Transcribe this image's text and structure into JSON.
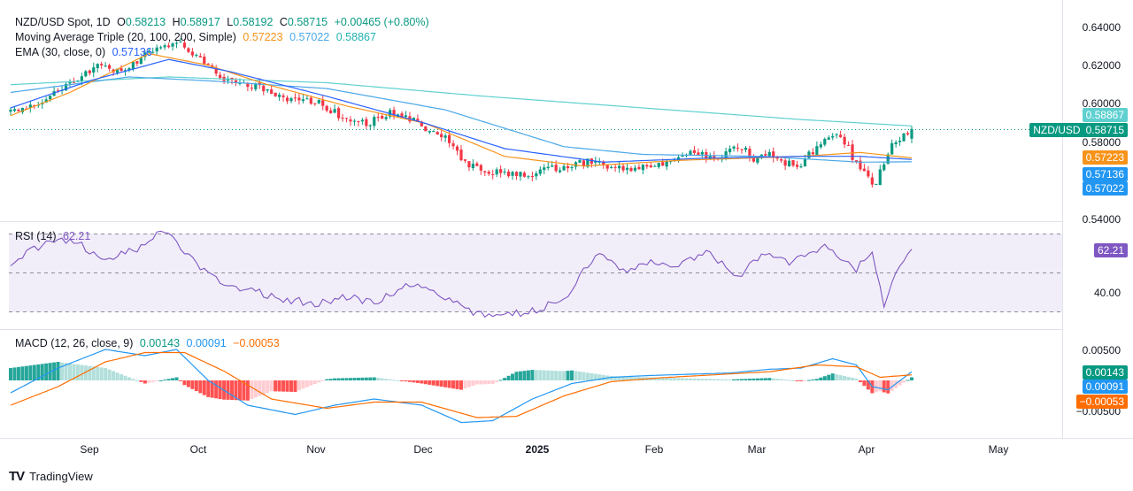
{
  "legend": {
    "main": {
      "title": "NZD/USD Spot, 1D",
      "o_label": "O",
      "o": "0.58213",
      "h_label": "H",
      "h": "0.58917",
      "l_label": "L",
      "l": "0.58192",
      "c_label": "C",
      "c": "0.58715",
      "change": "+0.00465 (+0.80%)"
    },
    "ma": {
      "title": "Moving Average Triple (20, 100, 200, Simple)",
      "v1": "0.57223",
      "v2": "0.57022",
      "v3": "0.58867"
    },
    "ema": {
      "title": "EMA (30, close, 0)",
      "v": "0.57136"
    },
    "rsi": {
      "title": "RSI (14)",
      "v": "62.21"
    },
    "macd": {
      "title": "MACD (12, 26, close, 9)",
      "v1": "0.00143",
      "v2": "0.00091",
      "v3": "−0.00053"
    }
  },
  "price_axis": [
    "0.64000",
    "0.62000",
    "0.60000",
    "0.58000",
    "0.54000"
  ],
  "rsi_axis": [
    "40.00"
  ],
  "macd_axis": [
    "0.00500",
    "−0.00500"
  ],
  "x_axis": [
    "Sep",
    "Oct",
    "Nov",
    "Dec",
    "2025",
    "Feb",
    "Mar",
    "Apr",
    "May"
  ],
  "badges": {
    "sma200": "0.58867",
    "symbol": "NZD/USD",
    "price": "0.58715",
    "sma20": "0.57223",
    "ema30": "0.57136",
    "sma100": "0.57022",
    "rsi": "62.21",
    "macd": "0.00143",
    "signal": "0.00091",
    "hist": "−0.00053"
  },
  "brand": "TradingView",
  "colors": {
    "up": "#089981",
    "down": "#f23645",
    "sma20": "#f7931a",
    "sma100": "#4aa8e8",
    "sma200": "#5fd0d0",
    "ema30": "#2962ff",
    "rsi": "#7e57c2",
    "macd": "#2196f3",
    "signal": "#ff6d00"
  },
  "chart_data": [
    {
      "type": "candlestick",
      "title": "NZD/USD Spot, 1D",
      "ylim": [
        0.54,
        0.646
      ],
      "x_ticks": [
        "Sep",
        "Oct",
        "Nov",
        "Dec",
        "2025",
        "Feb",
        "Mar",
        "Apr",
        "May"
      ],
      "close_anchors": [
        [
          0,
          0.596
        ],
        [
          7,
          0.601
        ],
        [
          14,
          0.61
        ],
        [
          22,
          0.619
        ],
        [
          28,
          0.617
        ],
        [
          36,
          0.628
        ],
        [
          42,
          0.633
        ],
        [
          48,
          0.623
        ],
        [
          54,
          0.613
        ],
        [
          62,
          0.609
        ],
        [
          70,
          0.603
        ],
        [
          78,
          0.601
        ],
        [
          84,
          0.593
        ],
        [
          90,
          0.59
        ],
        [
          96,
          0.595
        ],
        [
          102,
          0.591
        ],
        [
          110,
          0.582
        ],
        [
          116,
          0.568
        ],
        [
          122,
          0.565
        ],
        [
          130,
          0.563
        ],
        [
          138,
          0.567
        ],
        [
          146,
          0.57
        ],
        [
          152,
          0.568
        ],
        [
          158,
          0.566
        ],
        [
          166,
          0.57
        ],
        [
          172,
          0.574
        ],
        [
          180,
          0.572
        ],
        [
          184,
          0.579
        ],
        [
          188,
          0.572
        ],
        [
          192,
          0.575
        ],
        [
          196,
          0.57
        ],
        [
          200,
          0.569
        ],
        [
          204,
          0.578
        ],
        [
          207,
          0.581
        ],
        [
          210,
          0.584
        ],
        [
          213,
          0.573
        ],
        [
          217,
          0.561
        ],
        [
          219,
          0.559
        ],
        [
          221,
          0.57
        ],
        [
          223,
          0.578
        ],
        [
          226,
          0.585
        ],
        [
          228,
          0.587
        ]
      ],
      "series": [
        {
          "name": "SMA 200",
          "anchors": [
            [
              0,
              0.61
            ],
            [
              40,
              0.614
            ],
            [
              80,
              0.611
            ],
            [
              120,
              0.604
            ],
            [
              160,
              0.598
            ],
            [
              200,
              0.592
            ],
            [
              228,
              0.5887
            ]
          ]
        },
        {
          "name": "SMA 100",
          "anchors": [
            [
              0,
              0.606
            ],
            [
              30,
              0.614
            ],
            [
              50,
              0.612
            ],
            [
              80,
              0.608
            ],
            [
              110,
              0.597
            ],
            [
              140,
              0.578
            ],
            [
              160,
              0.574
            ],
            [
              190,
              0.573
            ],
            [
              215,
              0.57
            ],
            [
              228,
              0.5702
            ]
          ]
        },
        {
          "name": "SMA 20",
          "anchors": [
            [
              0,
              0.594
            ],
            [
              15,
              0.606
            ],
            [
              35,
              0.626
            ],
            [
              50,
              0.62
            ],
            [
              65,
              0.61
            ],
            [
              85,
              0.599
            ],
            [
              105,
              0.59
            ],
            [
              125,
              0.573
            ],
            [
              145,
              0.568
            ],
            [
              170,
              0.571
            ],
            [
              200,
              0.573
            ],
            [
              215,
              0.575
            ],
            [
              228,
              0.5722
            ]
          ]
        },
        {
          "name": "EMA 30",
          "anchors": [
            [
              0,
              0.598
            ],
            [
              20,
              0.612
            ],
            [
              40,
              0.623
            ],
            [
              55,
              0.617
            ],
            [
              80,
              0.604
            ],
            [
              105,
              0.59
            ],
            [
              125,
              0.577
            ],
            [
              150,
              0.57
            ],
            [
              175,
              0.572
            ],
            [
              200,
              0.573
            ],
            [
              215,
              0.573
            ],
            [
              228,
              0.5714
            ]
          ]
        }
      ]
    },
    {
      "type": "line",
      "title": "RSI (14)",
      "ylim": [
        25,
        75
      ],
      "bands": [
        30,
        50,
        70
      ],
      "y_ticks": [
        40
      ],
      "anchors": [
        [
          0,
          55
        ],
        [
          6,
          62
        ],
        [
          12,
          68
        ],
        [
          18,
          64
        ],
        [
          24,
          56
        ],
        [
          32,
          62
        ],
        [
          38,
          72
        ],
        [
          42,
          65
        ],
        [
          48,
          52
        ],
        [
          54,
          44
        ],
        [
          62,
          40
        ],
        [
          70,
          36
        ],
        [
          78,
          34
        ],
        [
          86,
          38
        ],
        [
          92,
          34
        ],
        [
          100,
          44
        ],
        [
          108,
          40
        ],
        [
          116,
          30
        ],
        [
          124,
          28
        ],
        [
          132,
          30
        ],
        [
          140,
          36
        ],
        [
          146,
          54
        ],
        [
          150,
          60
        ],
        [
          156,
          50
        ],
        [
          162,
          56
        ],
        [
          168,
          52
        ],
        [
          176,
          62
        ],
        [
          184,
          48
        ],
        [
          190,
          60
        ],
        [
          196,
          55
        ],
        [
          202,
          58
        ],
        [
          206,
          66
        ],
        [
          210,
          58
        ],
        [
          214,
          52
        ],
        [
          218,
          60
        ],
        [
          221,
          34
        ],
        [
          224,
          48
        ],
        [
          228,
          62
        ]
      ]
    },
    {
      "type": "bar+line",
      "title": "MACD (12, 26, close, 9)",
      "ylim": [
        -0.008,
        0.008
      ],
      "y_ticks": [
        0.005,
        -0.005
      ],
      "macd_anchors": [
        [
          0,
          -0.002
        ],
        [
          12,
          0.002
        ],
        [
          24,
          0.005
        ],
        [
          34,
          0.004
        ],
        [
          42,
          0.005
        ],
        [
          50,
          0.0
        ],
        [
          60,
          -0.004
        ],
        [
          72,
          -0.0055
        ],
        [
          82,
          -0.004
        ],
        [
          92,
          -0.003
        ],
        [
          104,
          -0.004
        ],
        [
          114,
          -0.0068
        ],
        [
          122,
          -0.0065
        ],
        [
          132,
          -0.003
        ],
        [
          142,
          -0.0005
        ],
        [
          152,
          0.0005
        ],
        [
          162,
          0.0008
        ],
        [
          172,
          0.001
        ],
        [
          182,
          0.0012
        ],
        [
          192,
          0.0018
        ],
        [
          200,
          0.002
        ],
        [
          208,
          0.0035
        ],
        [
          214,
          0.0025
        ],
        [
          218,
          -0.001
        ],
        [
          222,
          -0.0015
        ],
        [
          228,
          0.0014
        ]
      ],
      "signal_anchors": [
        [
          0,
          -0.004
        ],
        [
          12,
          -0.001
        ],
        [
          24,
          0.003
        ],
        [
          34,
          0.0045
        ],
        [
          44,
          0.0045
        ],
        [
          54,
          0.0015
        ],
        [
          66,
          -0.003
        ],
        [
          80,
          -0.0045
        ],
        [
          92,
          -0.0035
        ],
        [
          104,
          -0.0035
        ],
        [
          118,
          -0.006
        ],
        [
          128,
          -0.0058
        ],
        [
          140,
          -0.0025
        ],
        [
          152,
          -0.0002
        ],
        [
          164,
          0.0004
        ],
        [
          178,
          0.0009
        ],
        [
          192,
          0.0014
        ],
        [
          204,
          0.0025
        ],
        [
          214,
          0.0022
        ],
        [
          220,
          0.0005
        ],
        [
          228,
          0.0009
        ]
      ]
    }
  ]
}
